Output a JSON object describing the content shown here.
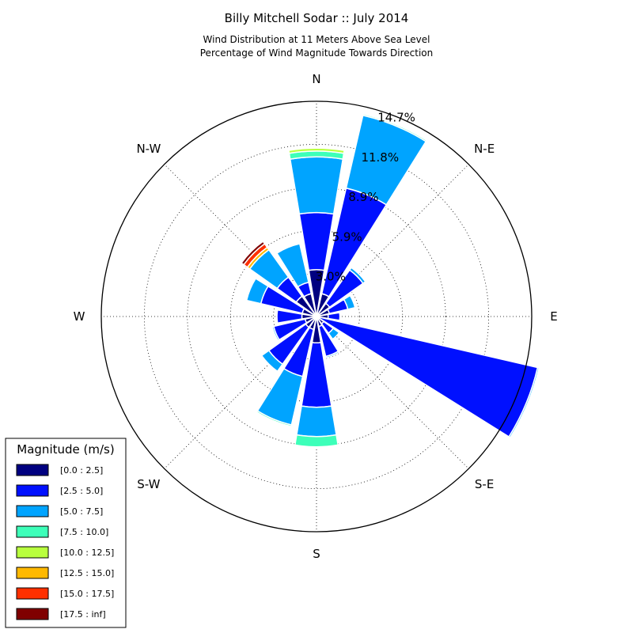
{
  "chart_data": {
    "type": "windrose",
    "title": "Billy Mitchell Sodar :: July 2014",
    "subtitle_lines": [
      "Wind Distribution at 11 Meters Above Sea Level",
      "Percentage of Wind Magnitude Towards Direction"
    ],
    "directions": [
      "N",
      "N-E",
      "E",
      "S-E",
      "S",
      "S-W",
      "W",
      "N-W"
    ],
    "ring_labels": [
      "3.0%",
      "5.9%",
      "8.9%",
      "11.8%",
      "14.7%"
    ],
    "ring_values": [
      2.94,
      5.88,
      8.82,
      11.76,
      14.7
    ],
    "rmax": 14.7,
    "grid": true,
    "legend": {
      "title": "Magnitude (m/s)",
      "position": "lower-left",
      "bins": [
        "[0.0 : 2.5]",
        "[2.5 : 5.0]",
        "[5.0 : 7.5]",
        "[7.5 : 10.0]",
        "[10.0 : 12.5]",
        "[12.5 : 15.0]",
        "[15.0 : 17.5]",
        "[17.5 : inf]"
      ],
      "colors": [
        "#000080",
        "#0010ff",
        "#00a4ff",
        "#3dffb9",
        "#b9ff3d",
        "#ffb900",
        "#ff3000",
        "#800000"
      ]
    },
    "sectors": [
      {
        "angle": 0,
        "values": [
          3.2,
          7.1,
          10.9,
          11.3,
          11.5,
          0,
          0,
          0
        ]
      },
      {
        "angle": 22.5,
        "values": [
          1.6,
          9.0,
          14.1,
          14.2,
          14.25,
          0,
          0,
          0
        ]
      },
      {
        "angle": 45,
        "values": [
          1.1,
          3.9,
          4.1,
          0,
          0,
          0,
          0,
          0
        ]
      },
      {
        "angle": 67.5,
        "values": [
          0.9,
          2.2,
          2.7,
          0,
          0,
          0,
          0,
          0
        ]
      },
      {
        "angle": 90,
        "values": [
          0.8,
          1.6,
          0,
          0,
          0,
          0,
          0,
          0
        ]
      },
      {
        "angle": 112.5,
        "values": [
          0,
          15.5,
          15.6,
          0,
          0,
          0,
          0,
          0
        ]
      },
      {
        "angle": 135,
        "values": [
          0.6,
          1.4,
          1.9,
          0,
          0,
          0,
          0,
          0
        ]
      },
      {
        "angle": 157.5,
        "values": [
          0.7,
          2.8,
          2.9,
          0,
          0,
          0,
          0,
          0
        ]
      },
      {
        "angle": 180,
        "values": [
          1.8,
          6.2,
          8.2,
          8.9,
          0,
          0,
          0,
          0
        ]
      },
      {
        "angle": 202.5,
        "values": [
          0.9,
          4.2,
          7.6,
          7.7,
          0,
          0,
          0,
          0
        ]
      },
      {
        "angle": 225,
        "values": [
          0.9,
          4.0,
          4.6,
          0,
          0,
          0,
          0,
          0
        ]
      },
      {
        "angle": 247.5,
        "values": [
          0.8,
          3.0,
          3.1,
          0,
          0,
          0,
          0,
          0
        ]
      },
      {
        "angle": 270,
        "values": [
          1.0,
          2.7,
          0,
          0,
          0,
          0,
          0,
          0
        ]
      },
      {
        "angle": 292.5,
        "values": [
          1.0,
          3.9,
          4.9,
          0,
          0,
          0,
          0,
          0
        ]
      },
      {
        "angle": 315,
        "values": [
          1.7,
          3.3,
          5.6,
          0,
          0,
          5.8,
          6.1,
          6.3
        ]
      },
      {
        "angle": 337.5,
        "values": [
          1.6,
          2.4,
          5.1,
          0,
          0,
          0,
          0,
          0
        ]
      }
    ]
  }
}
